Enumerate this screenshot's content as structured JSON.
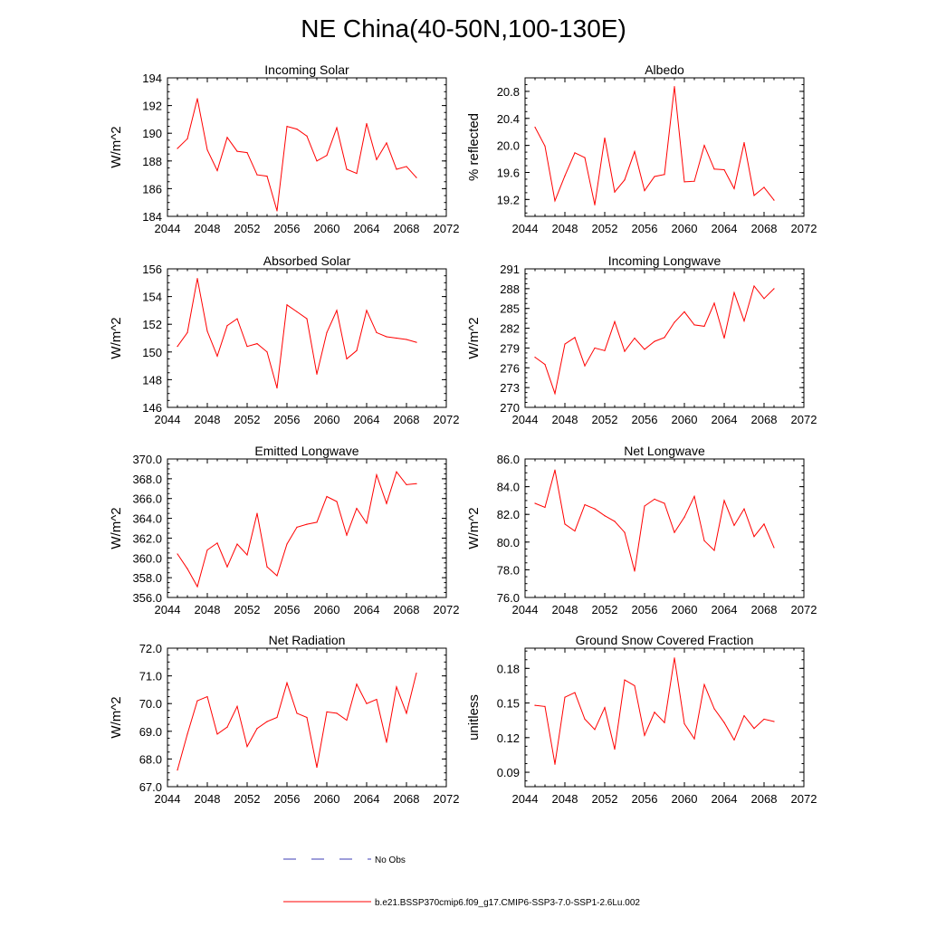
{
  "title": "NE China(40-50N,100-130E)",
  "x_ticks": [
    "2044",
    "2048",
    "2052",
    "2056",
    "2060",
    "2064",
    "2068",
    "2072"
  ],
  "legend": {
    "obs_label": "No Obs",
    "obs_color": "#3c3cb4",
    "model_label": "b.e21.BSSP370cmip6.f09_g17.CMIP6-SSP3-7.0-SSP1-2.6Lu.002",
    "model_color": "#ff0000"
  },
  "chart_data": [
    {
      "type": "line",
      "title": "Incoming Solar",
      "ylabel": "W/m^2",
      "xlim": [
        2044,
        2072
      ],
      "ylim": [
        184,
        194
      ],
      "yticks": [
        "184",
        "186",
        "188",
        "190",
        "192",
        "194"
      ],
      "x": [
        2045,
        2046,
        2047,
        2048,
        2049,
        2050,
        2051,
        2052,
        2053,
        2054,
        2055,
        2056,
        2057,
        2058,
        2059,
        2060,
        2061,
        2062,
        2063,
        2064,
        2065,
        2066,
        2067,
        2068,
        2069
      ],
      "values": [
        188.9,
        189.6,
        192.5,
        188.8,
        187.3,
        189.7,
        188.7,
        188.6,
        187.0,
        186.9,
        184.4,
        190.5,
        190.3,
        189.8,
        188.0,
        188.4,
        190.4,
        187.4,
        187.1,
        190.7,
        188.1,
        189.3,
        187.4,
        187.6,
        186.8
      ]
    },
    {
      "type": "line",
      "title": "Albedo",
      "ylabel": "% reflected",
      "xlim": [
        2044,
        2072
      ],
      "ylim": [
        18.95,
        21.0
      ],
      "yticks": [
        "19.2",
        "19.6",
        "20.0",
        "20.4",
        "20.8"
      ],
      "x": [
        2045,
        2046,
        2047,
        2048,
        2049,
        2050,
        2051,
        2052,
        2053,
        2054,
        2055,
        2056,
        2057,
        2058,
        2059,
        2060,
        2061,
        2062,
        2063,
        2064,
        2065,
        2066,
        2067,
        2068,
        2069
      ],
      "values": [
        20.27,
        19.99,
        19.18,
        19.55,
        19.89,
        19.82,
        19.12,
        20.11,
        19.31,
        19.49,
        19.91,
        19.33,
        19.54,
        19.57,
        20.87,
        19.46,
        19.47,
        20.0,
        19.65,
        19.64,
        19.36,
        20.04,
        19.26,
        19.38,
        19.19
      ]
    },
    {
      "type": "line",
      "title": "Absorbed Solar",
      "ylabel": "W/m^2",
      "xlim": [
        2044,
        2072
      ],
      "ylim": [
        146,
        156
      ],
      "yticks": [
        "146",
        "148",
        "150",
        "152",
        "154",
        "156"
      ],
      "x": [
        2045,
        2046,
        2047,
        2048,
        2049,
        2050,
        2051,
        2052,
        2053,
        2054,
        2055,
        2056,
        2057,
        2058,
        2059,
        2060,
        2061,
        2062,
        2063,
        2064,
        2065,
        2066,
        2067,
        2068,
        2069
      ],
      "values": [
        150.4,
        151.4,
        155.3,
        151.5,
        149.7,
        151.9,
        152.4,
        150.4,
        150.6,
        150.0,
        147.4,
        153.4,
        152.9,
        152.4,
        148.4,
        151.4,
        153.0,
        149.5,
        150.1,
        153.0,
        151.4,
        151.1,
        151.0,
        150.9,
        150.7
      ]
    },
    {
      "type": "line",
      "title": "Incoming Longwave",
      "ylabel": "W/m^2",
      "xlim": [
        2044,
        2072
      ],
      "ylim": [
        270,
        291
      ],
      "yticks": [
        "270",
        "273",
        "276",
        "279",
        "282",
        "285",
        "288",
        "291"
      ],
      "x": [
        2045,
        2046,
        2047,
        2048,
        2049,
        2050,
        2051,
        2052,
        2053,
        2054,
        2055,
        2056,
        2057,
        2058,
        2059,
        2060,
        2061,
        2062,
        2063,
        2064,
        2065,
        2066,
        2067,
        2068,
        2069
      ],
      "values": [
        277.6,
        276.5,
        272.1,
        279.6,
        280.6,
        276.3,
        279.0,
        278.6,
        283.0,
        278.5,
        280.5,
        278.8,
        280.0,
        280.6,
        282.9,
        284.5,
        282.5,
        282.3,
        285.8,
        280.5,
        287.4,
        283.1,
        288.4,
        286.5,
        288.0
      ]
    },
    {
      "type": "line",
      "title": "Emitted Longwave",
      "ylabel": "W/m^2",
      "xlim": [
        2044,
        2072
      ],
      "ylim": [
        356,
        370
      ],
      "yticks": [
        "356.0",
        "358.0",
        "360.0",
        "362.0",
        "364.0",
        "366.0",
        "368.0",
        "370.0"
      ],
      "x": [
        2045,
        2046,
        2047,
        2048,
        2049,
        2050,
        2051,
        2052,
        2053,
        2054,
        2055,
        2056,
        2057,
        2058,
        2059,
        2060,
        2061,
        2062,
        2063,
        2064,
        2065,
        2066,
        2067,
        2068,
        2069
      ],
      "values": [
        360.4,
        358.9,
        357.1,
        360.8,
        361.5,
        359.1,
        361.4,
        360.3,
        364.5,
        359.1,
        358.2,
        361.4,
        363.1,
        363.4,
        363.6,
        366.2,
        365.7,
        362.3,
        365.0,
        363.5,
        368.4,
        365.5,
        368.7,
        367.4,
        367.5
      ]
    },
    {
      "type": "line",
      "title": "Net Longwave",
      "ylabel": "W/m^2",
      "xlim": [
        2044,
        2072
      ],
      "ylim": [
        76,
        86
      ],
      "yticks": [
        "76.0",
        "78.0",
        "80.0",
        "82.0",
        "84.0",
        "86.0"
      ],
      "x": [
        2045,
        2046,
        2047,
        2048,
        2049,
        2050,
        2051,
        2052,
        2053,
        2054,
        2055,
        2056,
        2057,
        2058,
        2059,
        2060,
        2061,
        2062,
        2063,
        2064,
        2065,
        2066,
        2067,
        2068,
        2069
      ],
      "values": [
        82.8,
        82.5,
        85.2,
        81.3,
        80.8,
        82.7,
        82.4,
        81.9,
        81.5,
        80.7,
        77.9,
        82.6,
        83.1,
        82.8,
        80.7,
        81.8,
        83.3,
        80.1,
        79.4,
        83.0,
        81.2,
        82.4,
        80.4,
        81.3,
        79.6
      ]
    },
    {
      "type": "line",
      "title": "Net Radiation",
      "ylabel": "W/m^2",
      "xlim": [
        2044,
        2072
      ],
      "ylim": [
        67,
        72
      ],
      "yticks": [
        "67.0",
        "68.0",
        "69.0",
        "70.0",
        "71.0",
        "72.0"
      ],
      "x": [
        2045,
        2046,
        2047,
        2048,
        2049,
        2050,
        2051,
        2052,
        2053,
        2054,
        2055,
        2056,
        2057,
        2058,
        2059,
        2060,
        2061,
        2062,
        2063,
        2064,
        2065,
        2066,
        2067,
        2068,
        2069
      ],
      "values": [
        67.6,
        68.9,
        70.1,
        70.25,
        68.9,
        69.15,
        69.9,
        68.45,
        69.1,
        69.35,
        69.5,
        70.75,
        69.65,
        69.5,
        67.7,
        69.7,
        69.65,
        69.4,
        70.7,
        70.0,
        70.15,
        68.6,
        70.6,
        69.65,
        71.1
      ]
    },
    {
      "type": "line",
      "title": "Ground Snow Covered Fraction",
      "ylabel": "unitless",
      "xlim": [
        2044,
        2072
      ],
      "ylim": [
        0.0775,
        0.1975
      ],
      "yticks": [
        "0.09",
        "0.12",
        "0.15",
        "0.18"
      ],
      "x": [
        2045,
        2046,
        2047,
        2048,
        2049,
        2050,
        2051,
        2052,
        2053,
        2054,
        2055,
        2056,
        2057,
        2058,
        2059,
        2060,
        2061,
        2062,
        2063,
        2064,
        2065,
        2066,
        2067,
        2068,
        2069
      ],
      "values": [
        0.148,
        0.147,
        0.097,
        0.155,
        0.159,
        0.136,
        0.127,
        0.146,
        0.11,
        0.17,
        0.165,
        0.122,
        0.142,
        0.133,
        0.189,
        0.132,
        0.119,
        0.166,
        0.145,
        0.133,
        0.118,
        0.139,
        0.128,
        0.136,
        0.134
      ]
    }
  ]
}
